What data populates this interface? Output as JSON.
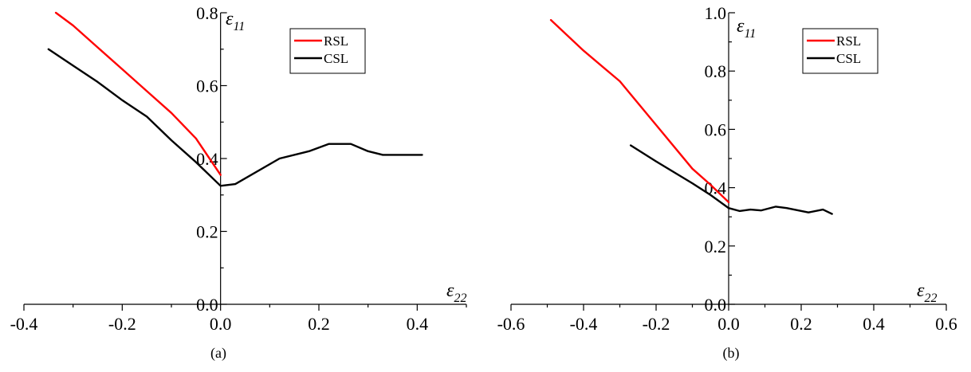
{
  "chart_data": [
    {
      "type": "line",
      "caption": "(a)",
      "xlabel": {
        "symbol": "ε",
        "subscript": "22"
      },
      "ylabel": {
        "symbol": "ε",
        "subscript": "11"
      },
      "xlim": [
        -0.4,
        0.5
      ],
      "ylim": [
        0.0,
        0.8
      ],
      "xticks": [
        -0.4,
        -0.2,
        0.0,
        0.2,
        0.4
      ],
      "xtick_labels": [
        "-0.4",
        "-0.2",
        "0.0",
        "0.2",
        "0.4"
      ],
      "yticks": [
        0.0,
        0.2,
        0.4,
        0.6,
        0.8
      ],
      "ytick_labels": [
        "0.0",
        "0.2",
        "0.4",
        "0.6",
        "0.8"
      ],
      "grid": false,
      "legend_position": "top-right",
      "series": [
        {
          "name": "RSL",
          "color": "#ff0000",
          "points": [
            [
              -0.335,
              0.8
            ],
            [
              -0.3,
              0.765
            ],
            [
              -0.25,
              0.705
            ],
            [
              -0.2,
              0.645
            ],
            [
              -0.15,
              0.585
            ],
            [
              -0.1,
              0.525
            ],
            [
              -0.05,
              0.455
            ],
            [
              0.0,
              0.355
            ]
          ]
        },
        {
          "name": "CSL",
          "color": "#000000",
          "points": [
            [
              -0.35,
              0.7
            ],
            [
              -0.3,
              0.655
            ],
            [
              -0.25,
              0.61
            ],
            [
              -0.2,
              0.56
            ],
            [
              -0.15,
              0.515
            ],
            [
              -0.1,
              0.45
            ],
            [
              -0.05,
              0.39
            ],
            [
              0.0,
              0.325
            ],
            [
              0.03,
              0.33
            ],
            [
              0.12,
              0.4
            ],
            [
              0.18,
              0.42
            ],
            [
              0.22,
              0.44
            ],
            [
              0.265,
              0.44
            ],
            [
              0.3,
              0.42
            ],
            [
              0.33,
              0.41
            ],
            [
              0.41,
              0.41
            ]
          ]
        }
      ]
    },
    {
      "type": "line",
      "caption": "(b)",
      "xlabel": {
        "symbol": "ε",
        "subscript": "22"
      },
      "ylabel": {
        "symbol": "ε",
        "subscript": "11"
      },
      "xlim": [
        -0.6,
        0.6
      ],
      "ylim": [
        0.0,
        1.0
      ],
      "xticks": [
        -0.6,
        -0.4,
        -0.2,
        0.0,
        0.2,
        0.4,
        0.6
      ],
      "xtick_labels": [
        "-0.6",
        "-0.4",
        "-0.2",
        "0.0",
        "0.2",
        "0.4",
        "0.6"
      ],
      "yticks": [
        0.0,
        0.2,
        0.4,
        0.6,
        0.8,
        1.0
      ],
      "ytick_labels": [
        "0.0",
        "0.2",
        "0.4",
        "0.6",
        "0.8",
        "1.0"
      ],
      "grid": false,
      "legend_position": "top-right",
      "series": [
        {
          "name": "RSL",
          "color": "#ff0000",
          "points": [
            [
              -0.49,
              0.975
            ],
            [
              -0.4,
              0.87
            ],
            [
              -0.3,
              0.765
            ],
            [
              -0.2,
              0.615
            ],
            [
              -0.1,
              0.465
            ],
            [
              -0.05,
              0.41
            ],
            [
              0.0,
              0.35
            ]
          ]
        },
        {
          "name": "CSL",
          "color": "#000000",
          "points": [
            [
              -0.27,
              0.545
            ],
            [
              -0.2,
              0.49
            ],
            [
              -0.1,
              0.415
            ],
            [
              -0.05,
              0.375
            ],
            [
              0.0,
              0.33
            ],
            [
              0.03,
              0.32
            ],
            [
              0.06,
              0.325
            ],
            [
              0.09,
              0.322
            ],
            [
              0.13,
              0.335
            ],
            [
              0.16,
              0.33
            ],
            [
              0.22,
              0.315
            ],
            [
              0.26,
              0.325
            ],
            [
              0.285,
              0.31
            ]
          ]
        }
      ]
    }
  ]
}
